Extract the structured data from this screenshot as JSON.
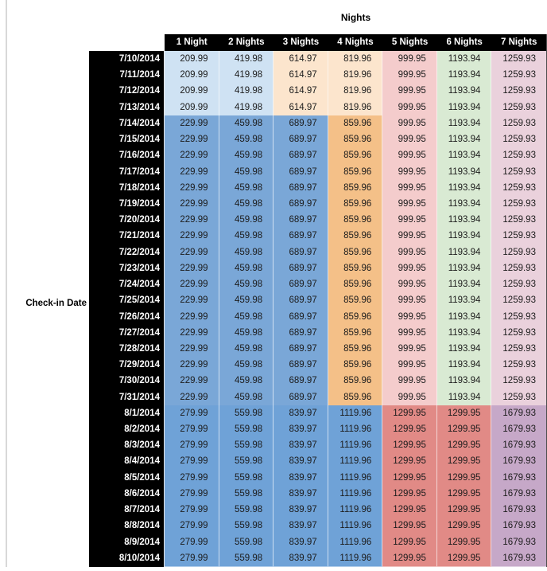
{
  "colors": {
    "header_bg": "#000000",
    "header_text": "#FFFFFF",
    "date_column_bg": "#000000",
    "date_column_text": "#FFFFFF",
    "value_text": "#1C1C1C",
    "left_gridline": "#D8D8D8",
    "band_cell_fills": [
      [
        "#CFE2F3",
        "#CFE2F3",
        "#FCE5CD",
        "#FCE5CD",
        "#F4CCCC",
        "#D9EAD3",
        "#EAD1DC"
      ],
      [
        "#7AA7D7",
        "#7AA7D7",
        "#7AA7D7",
        "#F4C088",
        "#F4CCCC",
        "#D9EAD3",
        "#EAD1DC"
      ],
      [
        "#6FA2D7",
        "#6FA2D7",
        "#6FA2D7",
        "#6FA2D7",
        "#E18A86",
        "#E18A86",
        "#C6A8C8"
      ]
    ]
  },
  "chart_data": {
    "type": "table",
    "title": "Nights",
    "row_axis_label": "Check-in Date",
    "columns": [
      "1 Night",
      "2 Nights",
      "3 Nights",
      "4 Nights",
      "5 Nights",
      "6 Nights",
      "7 Nights"
    ],
    "rows": [
      {
        "date": "7/10/2014",
        "band": 0,
        "values": [
          209.99,
          419.98,
          614.97,
          819.96,
          999.95,
          1193.94,
          1259.93
        ]
      },
      {
        "date": "7/11/2014",
        "band": 0,
        "values": [
          209.99,
          419.98,
          614.97,
          819.96,
          999.95,
          1193.94,
          1259.93
        ]
      },
      {
        "date": "7/12/2014",
        "band": 0,
        "values": [
          209.99,
          419.98,
          614.97,
          819.96,
          999.95,
          1193.94,
          1259.93
        ]
      },
      {
        "date": "7/13/2014",
        "band": 0,
        "values": [
          209.99,
          419.98,
          614.97,
          819.96,
          999.95,
          1193.94,
          1259.93
        ]
      },
      {
        "date": "7/14/2014",
        "band": 1,
        "values": [
          229.99,
          459.98,
          689.97,
          859.96,
          999.95,
          1193.94,
          1259.93
        ]
      },
      {
        "date": "7/15/2014",
        "band": 1,
        "values": [
          229.99,
          459.98,
          689.97,
          859.96,
          999.95,
          1193.94,
          1259.93
        ]
      },
      {
        "date": "7/16/2014",
        "band": 1,
        "values": [
          229.99,
          459.98,
          689.97,
          859.96,
          999.95,
          1193.94,
          1259.93
        ]
      },
      {
        "date": "7/17/2014",
        "band": 1,
        "values": [
          229.99,
          459.98,
          689.97,
          859.96,
          999.95,
          1193.94,
          1259.93
        ]
      },
      {
        "date": "7/18/2014",
        "band": 1,
        "values": [
          229.99,
          459.98,
          689.97,
          859.96,
          999.95,
          1193.94,
          1259.93
        ]
      },
      {
        "date": "7/19/2014",
        "band": 1,
        "values": [
          229.99,
          459.98,
          689.97,
          859.96,
          999.95,
          1193.94,
          1259.93
        ]
      },
      {
        "date": "7/20/2014",
        "band": 1,
        "values": [
          229.99,
          459.98,
          689.97,
          859.96,
          999.95,
          1193.94,
          1259.93
        ]
      },
      {
        "date": "7/21/2014",
        "band": 1,
        "values": [
          229.99,
          459.98,
          689.97,
          859.96,
          999.95,
          1193.94,
          1259.93
        ]
      },
      {
        "date": "7/22/2014",
        "band": 1,
        "values": [
          229.99,
          459.98,
          689.97,
          859.96,
          999.95,
          1193.94,
          1259.93
        ]
      },
      {
        "date": "7/23/2014",
        "band": 1,
        "values": [
          229.99,
          459.98,
          689.97,
          859.96,
          999.95,
          1193.94,
          1259.93
        ]
      },
      {
        "date": "7/24/2014",
        "band": 1,
        "values": [
          229.99,
          459.98,
          689.97,
          859.96,
          999.95,
          1193.94,
          1259.93
        ]
      },
      {
        "date": "7/25/2014",
        "band": 1,
        "values": [
          229.99,
          459.98,
          689.97,
          859.96,
          999.95,
          1193.94,
          1259.93
        ]
      },
      {
        "date": "7/26/2014",
        "band": 1,
        "values": [
          229.99,
          459.98,
          689.97,
          859.96,
          999.95,
          1193.94,
          1259.93
        ]
      },
      {
        "date": "7/27/2014",
        "band": 1,
        "values": [
          229.99,
          459.98,
          689.97,
          859.96,
          999.95,
          1193.94,
          1259.93
        ]
      },
      {
        "date": "7/28/2014",
        "band": 1,
        "values": [
          229.99,
          459.98,
          689.97,
          859.96,
          999.95,
          1193.94,
          1259.93
        ]
      },
      {
        "date": "7/29/2014",
        "band": 1,
        "values": [
          229.99,
          459.98,
          689.97,
          859.96,
          999.95,
          1193.94,
          1259.93
        ]
      },
      {
        "date": "7/30/2014",
        "band": 1,
        "values": [
          229.99,
          459.98,
          689.97,
          859.96,
          999.95,
          1193.94,
          1259.93
        ]
      },
      {
        "date": "7/31/2014",
        "band": 1,
        "values": [
          229.99,
          459.98,
          689.97,
          859.96,
          999.95,
          1193.94,
          1259.93
        ]
      },
      {
        "date": "8/1/2014",
        "band": 2,
        "values": [
          279.99,
          559.98,
          839.97,
          1119.96,
          1299.95,
          1299.95,
          1679.93
        ]
      },
      {
        "date": "8/2/2014",
        "band": 2,
        "values": [
          279.99,
          559.98,
          839.97,
          1119.96,
          1299.95,
          1299.95,
          1679.93
        ]
      },
      {
        "date": "8/3/2014",
        "band": 2,
        "values": [
          279.99,
          559.98,
          839.97,
          1119.96,
          1299.95,
          1299.95,
          1679.93
        ]
      },
      {
        "date": "8/4/2014",
        "band": 2,
        "values": [
          279.99,
          559.98,
          839.97,
          1119.96,
          1299.95,
          1299.95,
          1679.93
        ]
      },
      {
        "date": "8/5/2014",
        "band": 2,
        "values": [
          279.99,
          559.98,
          839.97,
          1119.96,
          1299.95,
          1299.95,
          1679.93
        ]
      },
      {
        "date": "8/6/2014",
        "band": 2,
        "values": [
          279.99,
          559.98,
          839.97,
          1119.96,
          1299.95,
          1299.95,
          1679.93
        ]
      },
      {
        "date": "8/7/2014",
        "band": 2,
        "values": [
          279.99,
          559.98,
          839.97,
          1119.96,
          1299.95,
          1299.95,
          1679.93
        ]
      },
      {
        "date": "8/8/2014",
        "band": 2,
        "values": [
          279.99,
          559.98,
          839.97,
          1119.96,
          1299.95,
          1299.95,
          1679.93
        ]
      },
      {
        "date": "8/9/2014",
        "band": 2,
        "values": [
          279.99,
          559.98,
          839.97,
          1119.96,
          1299.95,
          1299.95,
          1679.93
        ]
      },
      {
        "date": "8/10/2014",
        "band": 2,
        "values": [
          279.99,
          559.98,
          839.97,
          1119.96,
          1299.95,
          1299.95,
          1679.93
        ]
      }
    ]
  }
}
